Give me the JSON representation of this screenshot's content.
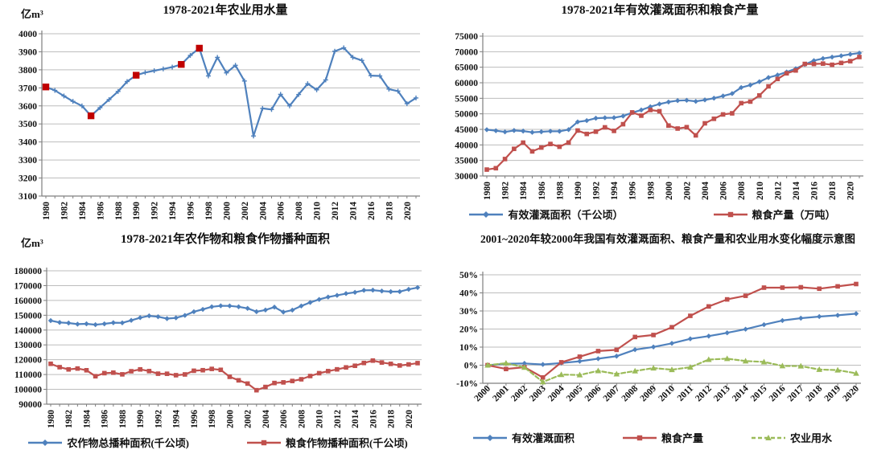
{
  "page": {
    "background": "#ffffff"
  },
  "colors": {
    "blue": "#4f81bd",
    "red": "#c0504d",
    "green": "#9bbb59",
    "highlight_red": "#c00000",
    "gridline": "#bdbdbd",
    "axis": "#7f7f7f"
  },
  "chart_data": [
    {
      "type": "line",
      "title": "1978-2021年农业用水量",
      "unit_label": "亿m³",
      "x_start_year": 1980,
      "x_tick_labels": [
        "1980",
        "1982",
        "1984",
        "1986",
        "1988",
        "1990",
        "1992",
        "1994",
        "1996",
        "1998",
        "2000",
        "2002",
        "2004",
        "2006",
        "2008",
        "2010",
        "2012",
        "2014",
        "2016",
        "2018",
        "2020"
      ],
      "y_tick_labels": [
        "4000",
        "3900",
        "3800",
        "3700",
        "3600",
        "3500",
        "3400",
        "3300",
        "3200",
        "3100"
      ],
      "ylim": [
        3100,
        4000
      ],
      "grid": true,
      "legend_position": "none",
      "series": [
        {
          "name": "农业用水量",
          "color": "#4f81bd",
          "marker": "plus",
          "dash": null,
          "values": [
            3705,
            3686,
            3655,
            3625,
            3600,
            3545,
            3590,
            3635,
            3680,
            3735,
            3770,
            3785,
            3795,
            3805,
            3815,
            3830,
            3880,
            3920,
            3766,
            3869,
            3783,
            3825,
            3738,
            3433,
            3586,
            3580,
            3664,
            3600,
            3663,
            3723,
            3689,
            3744,
            3903,
            3922,
            3869,
            3852,
            3768,
            3766,
            3693,
            3682,
            3612,
            3644
          ],
          "highlight_years": [
            1980,
            1985,
            1990,
            1995,
            1997
          ],
          "highlight_color": "#c00000"
        }
      ]
    },
    {
      "type": "line",
      "title": "1978-2021年有效灌溉面积和粮食产量",
      "unit_label": "",
      "x_start_year": 1980,
      "x_tick_labels": [
        "1980",
        "1982",
        "1984",
        "1986",
        "1988",
        "1990",
        "1992",
        "1994",
        "1996",
        "1998",
        "2000",
        "2002",
        "2004",
        "2006",
        "2008",
        "2010",
        "2012",
        "2014",
        "2016",
        "2018",
        "2020"
      ],
      "y_tick_labels": [
        "75000",
        "70000",
        "65000",
        "60000",
        "55000",
        "50000",
        "45000",
        "40000",
        "35000",
        "30000"
      ],
      "ylim": [
        30000,
        75000
      ],
      "grid": true,
      "legend_position": "bottom",
      "series": [
        {
          "name": "有效灌溉面积（千公顷）",
          "color": "#4f81bd",
          "marker": "diamond",
          "dash": null,
          "values": [
            44888,
            44574,
            44177,
            44644,
            44453,
            44036,
            44226,
            44403,
            44376,
            44917,
            47403,
            47822,
            48590,
            48728,
            48759,
            49281,
            50381,
            51239,
            52296,
            53158,
            53820,
            54249,
            54355,
            54014,
            54478,
            55029,
            55750,
            56518,
            58472,
            59261,
            60348,
            61682,
            62491,
            63473,
            64540,
            65873,
            67141,
            67816,
            68272,
            68679,
            69160,
            69561
          ]
        },
        {
          "name": "粮食产量（万吨）",
          "color": "#c0504d",
          "marker": "square",
          "dash": null,
          "values": [
            32056,
            32502,
            35450,
            38728,
            40731,
            37911,
            39151,
            40298,
            39408,
            40755,
            44624,
            43529,
            44266,
            45649,
            44510,
            46662,
            50454,
            49417,
            51230,
            50839,
            46218,
            45264,
            45706,
            43070,
            46947,
            48402,
            49804,
            50160,
            53434,
            53941,
            55911,
            58849,
            61223,
            63048,
            63965,
            66060,
            66044,
            66161,
            65789,
            66384,
            66949,
            68285
          ]
        }
      ]
    },
    {
      "type": "line",
      "title": "1978-2021年农作物和粮食作物播种面积",
      "unit_label": "亿m³",
      "x_start_year": 1980,
      "x_tick_labels": [
        "1980",
        "1982",
        "1984",
        "1986",
        "1988",
        "1990",
        "1992",
        "1994",
        "1996",
        "1998",
        "2000",
        "2002",
        "2004",
        "2006",
        "2008",
        "2010",
        "2012",
        "2014",
        "2016",
        "2018",
        "2020"
      ],
      "y_tick_labels": [
        "180000",
        "170000",
        "160000",
        "150000",
        "140000",
        "130000",
        "120000",
        "110000",
        "100000",
        "90000"
      ],
      "ylim": [
        90000,
        180000
      ],
      "grid": true,
      "legend_position": "bottom",
      "series": [
        {
          "name": "农作物总播种面积(千公顷)",
          "color": "#4f81bd",
          "marker": "diamond",
          "dash": null,
          "values": [
            146380,
            145157,
            144755,
            143993,
            144221,
            143626,
            144204,
            144957,
            144869,
            146554,
            148362,
            149586,
            149007,
            147741,
            148241,
            149879,
            152381,
            153969,
            155706,
            156373,
            156300,
            155708,
            154636,
            152415,
            153553,
            155488,
            152149,
            153464,
            156266,
            158639,
            160675,
            162283,
            163416,
            164627,
            165446,
            166829,
            166939,
            166332,
            165902,
            165931,
            167487,
            168695
          ]
        },
        {
          "name": "粮食作物播种面积(千公顷)",
          "color": "#c0504d",
          "marker": "square",
          "dash": null,
          "values": [
            117234,
            114958,
            113462,
            114047,
            112884,
            108845,
            110933,
            111268,
            110123,
            112205,
            113466,
            112314,
            110560,
            110509,
            109544,
            110060,
            112548,
            112912,
            113787,
            113161,
            108463,
            106080,
            103891,
            99410,
            101606,
            104278,
            104700,
            105638,
            106793,
            108986,
            110900,
            112300,
            113500,
            114800,
            115900,
            117800,
            119400,
            118100,
            117200,
            116100,
            116800,
            117700
          ]
        }
      ]
    },
    {
      "type": "line",
      "title": "2001~2020年较2000年我国有效灌溉面积、粮食产量和农业用水变化幅度示意图",
      "unit_label": "",
      "x_start_year": 2000,
      "x_tick_labels": [
        "2000",
        "2001",
        "2002",
        "2003",
        "2004",
        "2005",
        "2006",
        "2007",
        "2008",
        "2009",
        "2010",
        "2011",
        "2012",
        "2013",
        "2014",
        "2015",
        "2016",
        "2017",
        "2018",
        "2019",
        "2020"
      ],
      "y_tick_labels": [
        "50%",
        "40%",
        "30%",
        "20%",
        "10%",
        "0%",
        "-10%"
      ],
      "ylim": [
        -10,
        50
      ],
      "grid": true,
      "legend_position": "bottom",
      "series": [
        {
          "name": "有效灌溉面积",
          "color": "#4f81bd",
          "marker": "diamond",
          "dash": null,
          "values": [
            0,
            0.8,
            1.0,
            0.4,
            1.2,
            2.2,
            3.6,
            5.0,
            8.6,
            10.1,
            12.1,
            14.6,
            16.1,
            17.9,
            19.9,
            22.4,
            24.7,
            26.0,
            26.9,
            27.6,
            28.5
          ]
        },
        {
          "name": "粮食产量",
          "color": "#c0504d",
          "marker": "square",
          "dash": null,
          "values": [
            0,
            -2.1,
            -1.1,
            -6.8,
            1.6,
            4.7,
            7.8,
            8.5,
            15.6,
            16.7,
            21.0,
            27.3,
            32.5,
            36.4,
            38.4,
            42.9,
            42.9,
            43.1,
            42.3,
            43.6,
            44.9
          ]
        },
        {
          "name": "农业用水",
          "color": "#9bbb59",
          "marker": "triangle",
          "dash": "5,3",
          "values": [
            0,
            1.1,
            -1.2,
            -9.3,
            -5.2,
            -5.4,
            -3.1,
            -4.9,
            -3.2,
            -1.6,
            -2.5,
            -1.1,
            3.1,
            3.6,
            2.3,
            1.8,
            -0.4,
            -0.5,
            -2.4,
            -2.7,
            -4.5
          ]
        }
      ]
    }
  ]
}
